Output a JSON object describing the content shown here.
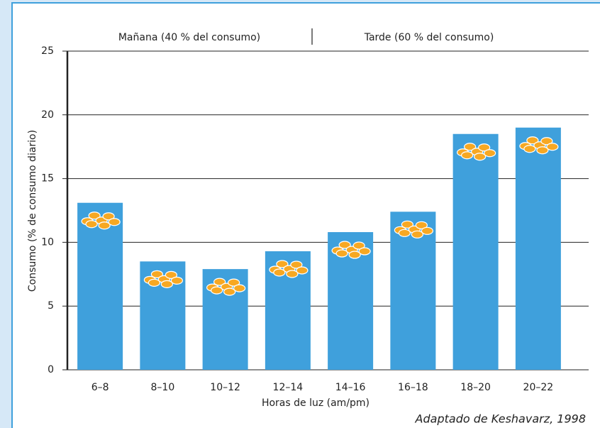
{
  "chart_data": {
    "type": "bar",
    "categories": [
      "6–8",
      "8–10",
      "10–12",
      "12–14",
      "14–16",
      "16–18",
      "18–20",
      "20–22"
    ],
    "values": [
      13.1,
      8.5,
      7.9,
      9.3,
      10.8,
      12.4,
      18.5,
      19.0
    ],
    "color": "#3fa0dc",
    "ylim": [
      0,
      25
    ],
    "yticks": [
      0,
      5,
      10,
      15,
      20,
      25
    ],
    "grid": true,
    "xlabel": "Horas de luz (am/pm)",
    "ylabel": "Consumo (% de consumo diario)",
    "annotations": [
      "Mañana (40 % del consumo)",
      "Tarde (60 % del consumo)"
    ],
    "source": "Adaptado de Keshavarz, 1998"
  }
}
